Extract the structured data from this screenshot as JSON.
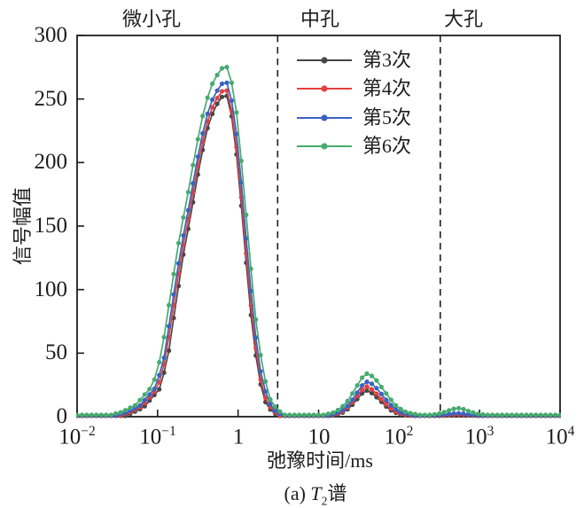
{
  "chart_data": {
    "type": "line",
    "title": "",
    "xlabel": "弛豫时间/ms",
    "ylabel": "信号幅值",
    "caption": {
      "prefix": "(a) ",
      "symbol": "T",
      "sub": "2",
      "suffix": "谱"
    },
    "xscale": "log",
    "xlim_ms": [
      0.01,
      10000
    ],
    "ylim": [
      0,
      300
    ],
    "grid": false,
    "legend_position": "top-center-right-inside-no-frame",
    "regions": [
      "微小孔",
      "中孔",
      "大孔"
    ],
    "dividers_ms": [
      3.1,
      325
    ],
    "yticks": [
      "300",
      "250",
      "200",
      "150",
      "100",
      "50",
      "0"
    ],
    "ytick_values": [
      300,
      250,
      200,
      150,
      100,
      50,
      0
    ],
    "xticks": [
      {
        "base": "10",
        "exp": "−2",
        "value_ms": 0.01
      },
      {
        "base": "10",
        "exp": "−1",
        "value_ms": 0.1
      },
      {
        "base": "1",
        "exp": "",
        "value_ms": 1
      },
      {
        "base": "10",
        "exp": "",
        "value_ms": 10
      },
      {
        "base": "10",
        "exp": "2",
        "value_ms": 100
      },
      {
        "base": "10",
        "exp": "3",
        "value_ms": 1000
      },
      {
        "base": "10",
        "exp": "4",
        "value_ms": 10000
      }
    ],
    "axis_color": "#1d1d1d",
    "divider_style": "dashed-vertical-black",
    "peak_shapes": {
      "comment": "normalized amplitude vs log10(ms) offset from peak center, read off the plot",
      "p1": [
        [
          -1.3,
          0.004
        ],
        [
          -1.23,
          0.008
        ],
        [
          -1.07,
          0.028
        ],
        [
          -0.87,
          0.085
        ],
        [
          -0.77,
          0.175
        ],
        [
          -0.67,
          0.34
        ],
        [
          -0.57,
          0.5
        ],
        [
          -0.47,
          0.63
        ],
        [
          -0.37,
          0.77
        ],
        [
          -0.27,
          0.89
        ],
        [
          -0.17,
          0.962
        ],
        [
          -0.07,
          0.997
        ],
        [
          0,
          1.0
        ],
        [
          0.08,
          0.9
        ],
        [
          0.16,
          0.7
        ],
        [
          0.24,
          0.47
        ],
        [
          0.32,
          0.26
        ],
        [
          0.4,
          0.12
        ],
        [
          0.48,
          0.045
        ],
        [
          0.56,
          0.015
        ],
        [
          0.63,
          0.004
        ]
      ],
      "p2": [
        [
          -0.46,
          0.01
        ],
        [
          -0.38,
          0.05
        ],
        [
          -0.3,
          0.14
        ],
        [
          -0.22,
          0.32
        ],
        [
          -0.14,
          0.6
        ],
        [
          -0.07,
          0.87
        ],
        [
          0,
          1.0
        ],
        [
          0.08,
          0.87
        ],
        [
          0.16,
          0.63
        ],
        [
          0.24,
          0.39
        ],
        [
          0.32,
          0.19
        ],
        [
          0.4,
          0.08
        ],
        [
          0.48,
          0.03
        ],
        [
          0.56,
          0.01
        ]
      ],
      "p3": [
        [
          -0.3,
          0.03
        ],
        [
          -0.22,
          0.15
        ],
        [
          -0.14,
          0.45
        ],
        [
          -0.07,
          0.8
        ],
        [
          0,
          1.0
        ],
        [
          0.07,
          0.8
        ],
        [
          0.14,
          0.45
        ],
        [
          0.22,
          0.15
        ],
        [
          0.3,
          0.03
        ]
      ]
    },
    "sampling_log10ms": {
      "start": -2,
      "end": 4,
      "step": 0.06
    },
    "series": [
      {
        "name": "第3次",
        "color": "#474747",
        "baseline": 0.6,
        "peaks": [
          {
            "shape": "p1",
            "center_ms": 0.74,
            "center_log10ms": -0.13,
            "amplitude": 252,
            "width_scale": 0.97
          },
          {
            "shape": "p2",
            "center_ms": 40,
            "center_log10ms": 1.6,
            "amplitude": 20,
            "width_scale": 0.97
          },
          {
            "shape": "p3",
            "center_ms": 537,
            "center_log10ms": 2.73,
            "amplitude": 0.8,
            "width_scale": 1.0
          }
        ]
      },
      {
        "name": "第4次",
        "color": "#E2413F",
        "baseline": 0.8,
        "peaks": [
          {
            "shape": "p1",
            "center_ms": 0.74,
            "center_log10ms": -0.13,
            "amplitude": 256,
            "width_scale": 1.0
          },
          {
            "shape": "p2",
            "center_ms": 40,
            "center_log10ms": 1.6,
            "amplitude": 23,
            "width_scale": 1.0
          },
          {
            "shape": "p3",
            "center_ms": 537,
            "center_log10ms": 2.73,
            "amplitude": 1.0,
            "width_scale": 1.0
          }
        ]
      },
      {
        "name": "第5次",
        "color": "#3A62C4",
        "baseline": 1.0,
        "peaks": [
          {
            "shape": "p1",
            "center_ms": 0.75,
            "center_log10ms": -0.125,
            "amplitude": 262,
            "width_scale": 1.03
          },
          {
            "shape": "p2",
            "center_ms": 41,
            "center_log10ms": 1.61,
            "amplitude": 27,
            "width_scale": 1.05
          },
          {
            "shape": "p3",
            "center_ms": 525,
            "center_log10ms": 2.72,
            "amplitude": 1.8,
            "width_scale": 1.0
          }
        ]
      },
      {
        "name": "第6次",
        "color": "#46AB6E",
        "baseline": 1.4,
        "peaks": [
          {
            "shape": "p1",
            "center_ms": 0.76,
            "center_log10ms": -0.12,
            "amplitude": 274,
            "width_scale": 1.08
          },
          {
            "shape": "p2",
            "center_ms": 41,
            "center_log10ms": 1.61,
            "amplitude": 33,
            "width_scale": 1.15
          },
          {
            "shape": "p3",
            "center_ms": 537,
            "center_log10ms": 2.73,
            "amplitude": 5.5,
            "width_scale": 1.1
          }
        ]
      }
    ]
  }
}
